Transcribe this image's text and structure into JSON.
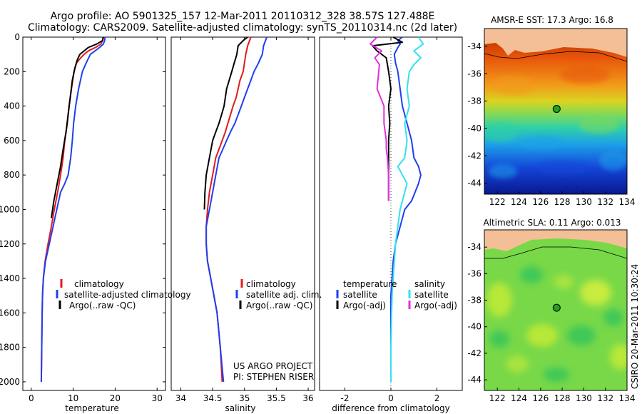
{
  "header": {
    "line1": "Argo profile: AO 5901325_157 12-Mar-2011 20110312_328 38.57S 127.488E",
    "line2": "Climatology: CARS2009. Satellite-adjusted climatology: synTS_20110314.nc (2d later)"
  },
  "side_label": "CSIRO 20-Mar-2011 10:30:24",
  "colors": {
    "climatology": "#e41a1c",
    "satellite": "#1f3ff0",
    "argo": "#000000",
    "sal_satellite": "#33e0f0",
    "sal_argo": "#e030e0",
    "land": "#f4bf96"
  },
  "chart_data": [
    {
      "type": "line",
      "xlabel": "temperature",
      "ylabel": "",
      "xlim": [
        -2,
        32
      ],
      "ylim": [
        2050,
        0
      ],
      "xticks": [
        "0",
        "10",
        "20",
        "30"
      ],
      "yticks": [
        "0",
        "200",
        "400",
        "600",
        "800",
        "1000",
        "1200",
        "1400",
        "1600",
        "1800",
        "2000"
      ],
      "legend": [
        "climatology",
        "satellite-adjusted climatology",
        "Argo(..raw -QC)"
      ],
      "series": [
        {
          "name": "climatology",
          "x": [
            17.1,
            17.0,
            16.6,
            15.3,
            13.6,
            12.6,
            11.8,
            10.8,
            10.2,
            9.6,
            9.0,
            8.6,
            8.0,
            7.6,
            7.0,
            6.3,
            5.5,
            4.8,
            4.0,
            3.3,
            2.9,
            2.7,
            2.6,
            2.5,
            2.4
          ],
          "y": [
            0,
            20,
            40,
            60,
            80,
            100,
            120,
            150,
            200,
            300,
            400,
            500,
            600,
            700,
            800,
            900,
            1000,
            1100,
            1200,
            1300,
            1400,
            1500,
            1600,
            1800,
            2000
          ]
        },
        {
          "name": "satellite-adjusted climatology",
          "x": [
            17.6,
            17.5,
            17.2,
            16.3,
            15.2,
            14.1,
            13.1,
            12.2,
            11.3,
            10.6,
            10.1,
            9.8,
            9.4,
            8.8,
            8.0,
            7.0,
            6.1,
            5.2,
            4.3,
            3.4,
            2.9,
            2.7,
            2.6,
            2.5,
            2.4
          ],
          "y": [
            0,
            20,
            40,
            60,
            80,
            100,
            150,
            200,
            300,
            400,
            500,
            600,
            700,
            800,
            850,
            900,
            1000,
            1100,
            1200,
            1300,
            1400,
            1500,
            1600,
            1800,
            2000
          ]
        },
        {
          "name": "Argo(..raw -QC)",
          "x": [
            17.2,
            17.0,
            15.6,
            13.6,
            12.6,
            11.6,
            11.0,
            10.4,
            9.8,
            9.3,
            8.8,
            8.3,
            7.6,
            7.0,
            6.2,
            5.4,
            4.8
          ],
          "y": [
            0,
            20,
            40,
            60,
            80,
            100,
            130,
            180,
            250,
            350,
            450,
            550,
            650,
            750,
            850,
            950,
            1050
          ]
        }
      ]
    },
    {
      "type": "line",
      "xlabel": "salinity",
      "xlim": [
        33.85,
        36.1
      ],
      "ylim": [
        2050,
        0
      ],
      "xticks": [
        "34",
        "34.5",
        "35",
        "35.5",
        "36"
      ],
      "legend": [
        "climatology",
        "satellite adj. clim.",
        "Argo(..raw -QC)"
      ],
      "annotation": [
        "US ARGO PROJECT",
        "PI: STEPHEN RISER"
      ],
      "series": [
        {
          "name": "climatology",
          "x": [
            35.1,
            35.05,
            35.02,
            35.0,
            34.98,
            34.93,
            34.9,
            34.87,
            34.82,
            34.78,
            34.74,
            34.7,
            34.65,
            34.6,
            34.55,
            34.5,
            34.45,
            34.42,
            34.4,
            34.4,
            34.42,
            34.47,
            34.52,
            34.57,
            34.62,
            34.65
          ],
          "y": [
            0,
            50,
            100,
            150,
            200,
            250,
            300,
            350,
            400,
            450,
            500,
            550,
            600,
            650,
            700,
            800,
            900,
            1000,
            1100,
            1200,
            1300,
            1400,
            1500,
            1600,
            1800,
            2000
          ]
        },
        {
          "name": "satellite adj. clim.",
          "x": [
            35.35,
            35.3,
            35.28,
            35.22,
            35.15,
            35.1,
            35.05,
            35.0,
            34.95,
            34.9,
            34.85,
            34.78,
            34.72,
            34.66,
            34.6,
            34.55,
            34.5,
            34.45,
            34.4,
            34.4,
            34.42,
            34.47,
            34.52,
            34.57,
            34.62,
            34.67
          ],
          "y": [
            0,
            50,
            100,
            150,
            200,
            250,
            300,
            350,
            400,
            450,
            500,
            550,
            600,
            650,
            700,
            800,
            900,
            1000,
            1100,
            1200,
            1300,
            1400,
            1500,
            1600,
            1800,
            2000
          ]
        },
        {
          "name": "Argo(..raw -QC)",
          "x": [
            35.05,
            34.98,
            34.9,
            34.88,
            34.84,
            34.8,
            34.76,
            34.72,
            34.7,
            34.68,
            34.64,
            34.6,
            34.55,
            34.5,
            34.45,
            34.4,
            34.38,
            34.37
          ],
          "y": [
            0,
            20,
            50,
            100,
            150,
            200,
            250,
            300,
            350,
            400,
            450,
            500,
            550,
            600,
            700,
            800,
            900,
            1000
          ]
        }
      ]
    },
    {
      "type": "line",
      "xlabel": "difference from climatology",
      "xlim": [
        -3.1,
        3.1
      ],
      "ylim": [
        2050,
        0
      ],
      "xticks": [
        "-2",
        "0",
        "2"
      ],
      "legend": {
        "temperature": [
          "satellite",
          "Argo(-adj)"
        ],
        "salinity": [
          "satellite",
          "Argo(-adj)"
        ]
      },
      "legend_titles": [
        "temperature",
        "salinity"
      ],
      "series": [
        {
          "name": "temperature satellite",
          "x": [
            0.5,
            0.3,
            0.4,
            0.3,
            0.15,
            0.2,
            0.3,
            0.4,
            0.5,
            0.7,
            0.9,
            1.0,
            1.2,
            1.3,
            1.2,
            0.9,
            0.6,
            0.4,
            0.2,
            0.1,
            0.05,
            0.0,
            0.0,
            0.0,
            0.0
          ],
          "y": [
            0,
            20,
            40,
            60,
            100,
            150,
            200,
            300,
            400,
            500,
            600,
            700,
            750,
            800,
            850,
            950,
            1000,
            1100,
            1200,
            1300,
            1400,
            1500,
            1600,
            1800,
            2000
          ]
        },
        {
          "name": "temperature Argo(-adj)",
          "x": [
            0.1,
            0.5,
            -0.8,
            -0.6,
            -0.2,
            -0.1,
            0.0,
            -0.1,
            -0.05,
            -0.1,
            -0.1,
            -0.1,
            -0.1,
            -0.1,
            -0.1
          ],
          "y": [
            0,
            30,
            50,
            80,
            120,
            200,
            300,
            400,
            500,
            600,
            650,
            700,
            800,
            900,
            950
          ]
        },
        {
          "name": "salinity satellite",
          "x": [
            1.2,
            1.4,
            1.0,
            1.3,
            1.0,
            0.8,
            0.7,
            0.8,
            0.6,
            0.7,
            0.6,
            0.3,
            0.7,
            0.5,
            0.4,
            0.3,
            0.2,
            0.15,
            0.1,
            0.05,
            0.03,
            0.0,
            0.0
          ],
          "y": [
            0,
            40,
            80,
            120,
            160,
            200,
            300,
            400,
            500,
            600,
            700,
            750,
            850,
            950,
            1000,
            1100,
            1200,
            1300,
            1400,
            1500,
            1600,
            1800,
            2000
          ]
        },
        {
          "name": "salinity Argo(-adj)",
          "x": [
            -0.6,
            -0.9,
            -0.4,
            -0.7,
            -0.5,
            -0.6,
            -0.3,
            -0.3,
            -0.2,
            -0.2,
            -0.15,
            -0.1,
            -0.1,
            -0.1
          ],
          "y": [
            0,
            40,
            80,
            120,
            160,
            300,
            400,
            500,
            600,
            650,
            700,
            800,
            900,
            950
          ]
        }
      ]
    },
    {
      "type": "heatmap",
      "title": "AMSR-E SST: 17.3 Argo: 16.8",
      "xlim": [
        120.8,
        134
      ],
      "ylim": [
        -44.8,
        -32.7
      ],
      "xticks": [
        "122",
        "124",
        "126",
        "128",
        "130",
        "132",
        "134"
      ],
      "yticks": [
        "-34",
        "-36",
        "-38",
        "-40",
        "-42",
        "-44"
      ],
      "marker": {
        "lon": 127.488,
        "lat": -38.57
      }
    },
    {
      "type": "heatmap",
      "title": "Altimetric SLA: 0.11 Argo: 0.013",
      "xlim": [
        120.8,
        134
      ],
      "ylim": [
        -44.8,
        -32.7
      ],
      "xticks": [
        "122",
        "124",
        "126",
        "128",
        "130",
        "132",
        "134"
      ],
      "yticks": [
        "-34",
        "-36",
        "-38",
        "-40",
        "-42",
        "-44"
      ],
      "marker": {
        "lon": 127.488,
        "lat": -38.57
      }
    }
  ]
}
